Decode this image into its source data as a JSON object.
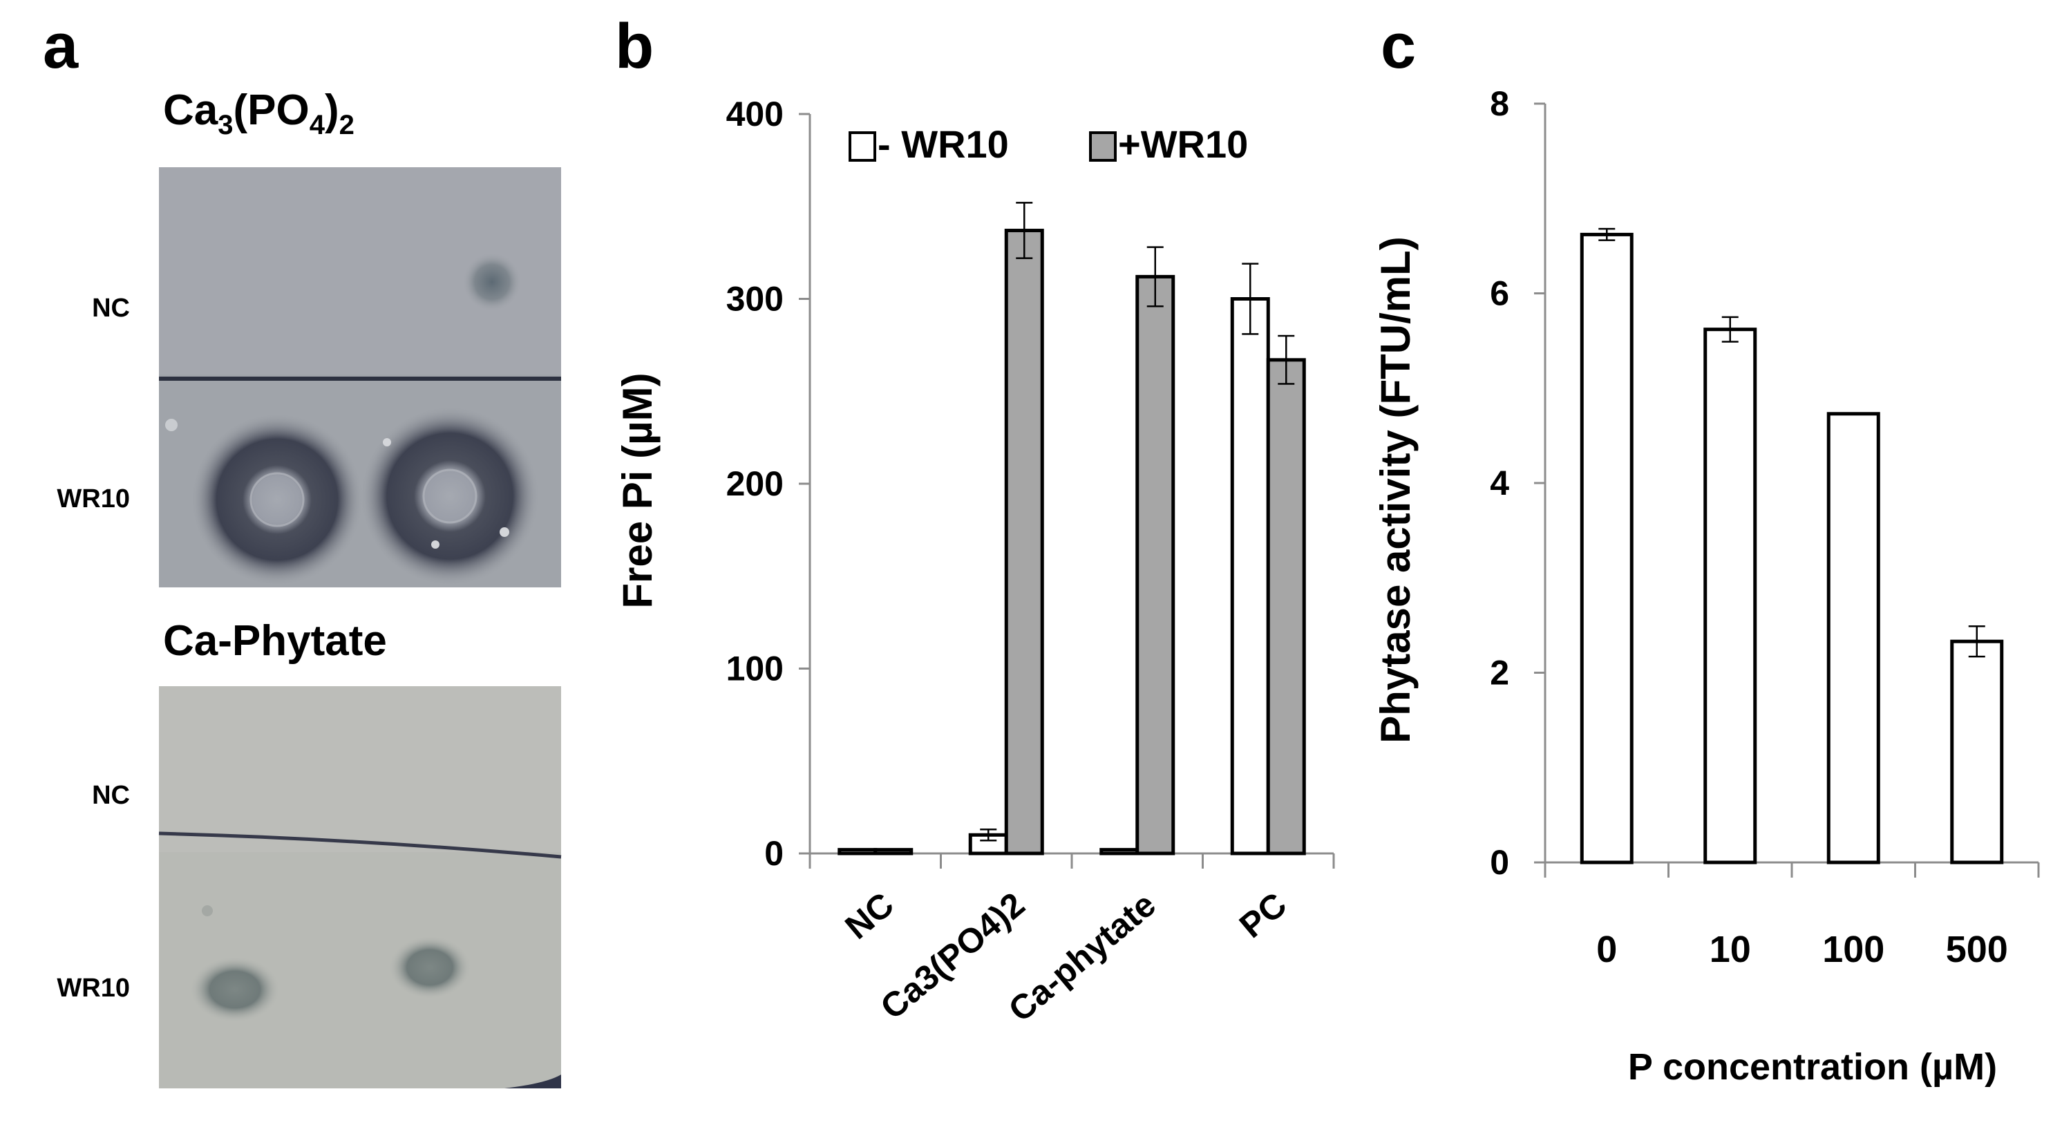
{
  "panel_a": {
    "letter": "a",
    "plates": [
      {
        "title_main": "Ca",
        "title_sub1": "3",
        "title_mid": "(PO",
        "title_sub2": "4",
        "title_close": ")",
        "title_sub3": "2",
        "rows": [
          "NC",
          "WR10"
        ],
        "colors": {
          "plate": "#9fa3a9",
          "plate_dark": "#8e9399",
          "halo": "#3f4452",
          "line": "#2c3140"
        }
      },
      {
        "title": "Ca-Phytate",
        "rows": [
          "NC",
          "WR10"
        ],
        "colors": {
          "plate": "#b9bbb6",
          "plate_dark": "#aaada7",
          "halo": "#6f7878",
          "line": "#36394a"
        }
      }
    ]
  },
  "chart_data": [
    {
      "panel": "b",
      "type": "bar",
      "categories": [
        "NC",
        "Ca3(PO4)2",
        "Ca-phytate",
        "PC"
      ],
      "series": [
        {
          "name": "- WR10",
          "values": [
            2,
            10,
            2,
            300
          ],
          "errors": [
            1,
            3,
            1,
            19
          ],
          "color": "#ffffff"
        },
        {
          "name": "+WR10",
          "values": [
            2,
            337,
            312,
            267
          ],
          "errors": [
            1,
            15,
            16,
            13
          ],
          "color": "#a6a6a6"
        }
      ],
      "title": "",
      "xlabel": "",
      "ylabel": "Free Pi (µM)",
      "ylim": [
        0,
        400
      ],
      "yticks": [
        "0",
        "100",
        "200",
        "300",
        "400"
      ],
      "legend": "top",
      "grid": false
    },
    {
      "panel": "c",
      "type": "bar",
      "categories": [
        "0",
        "10",
        "100",
        "500"
      ],
      "series": [
        {
          "values": [
            6.62,
            5.62,
            4.73,
            2.33
          ],
          "errors": [
            0.06,
            0.13,
            0,
            0.16
          ],
          "color": "#ffffff"
        }
      ],
      "title": "",
      "xlabel": "P  concentration  (µM)",
      "ylabel": "Phytase activity (FTU/mL)",
      "ylim": [
        0,
        8
      ],
      "yticks": [
        "0",
        "2",
        "4",
        "6",
        "8"
      ],
      "legend": "none",
      "grid": false
    }
  ]
}
